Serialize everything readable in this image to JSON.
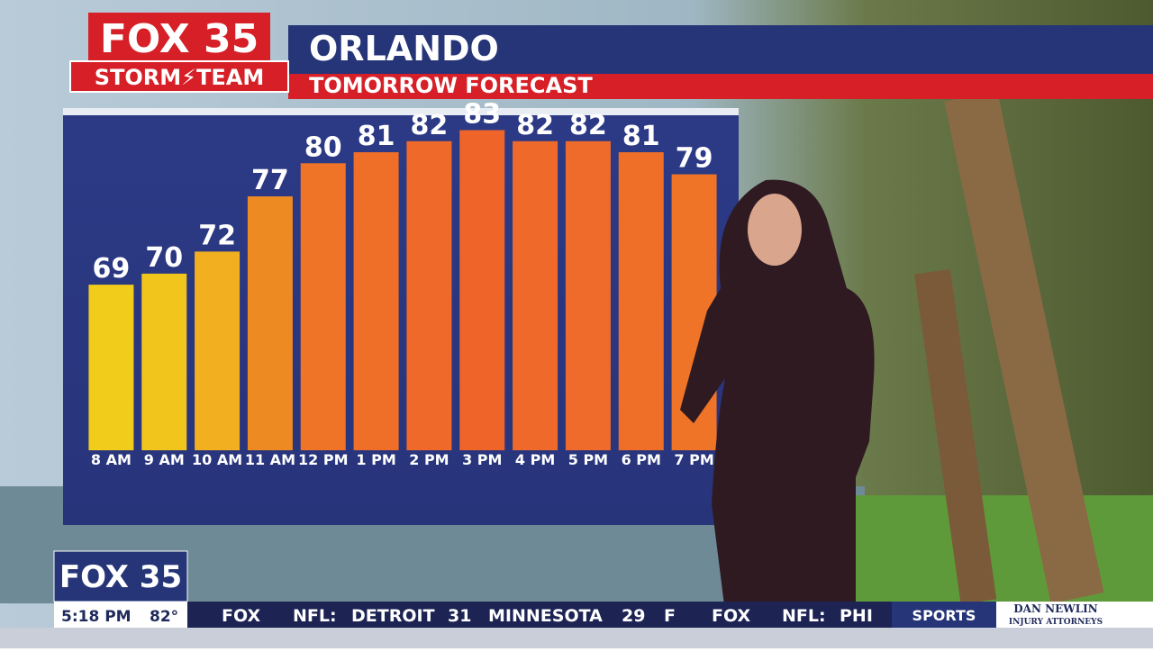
{
  "header": {
    "logo": "FOX 35",
    "team": "STORM⚡TEAM",
    "city": "ORLANDO",
    "subtitle": "TOMORROW FORECAST"
  },
  "chart_data": {
    "type": "bar",
    "categories": [
      "8 AM",
      "9 AM",
      "10 AM",
      "11 AM",
      "12 PM",
      "1 PM",
      "2 PM",
      "3 PM",
      "4 PM",
      "5 PM",
      "6 PM",
      "7 PM"
    ],
    "values": [
      69,
      70,
      72,
      77,
      80,
      81,
      82,
      83,
      82,
      82,
      81,
      79
    ],
    "colors": [
      "#f2cc1a",
      "#f2c51c",
      "#f2b020",
      "#ee8a22",
      "#ef7427",
      "#ef6e28",
      "#ef6a2a",
      "#ef6529",
      "#ef6a2a",
      "#ee6b2b",
      "#ef6e28",
      "#ef7427"
    ],
    "ylim": [
      54,
      85
    ]
  },
  "lower_third": {
    "logo": "FOX 35",
    "time": "5:18 PM",
    "temp": "82°"
  },
  "ticker": {
    "brand_1": "FOX",
    "league_1": "NFL:",
    "team_1": "DETROIT",
    "score_1": "31",
    "team_2": "MINNESOTA",
    "score_2": "29",
    "status": "F",
    "brand_2": "FOX",
    "league_2": "NFL:",
    "team_3": "PHI",
    "section": "SPORTS",
    "sponsor": "DAN NEWLIN",
    "sponsor_sub": "INJURY ATTORNEYS"
  }
}
